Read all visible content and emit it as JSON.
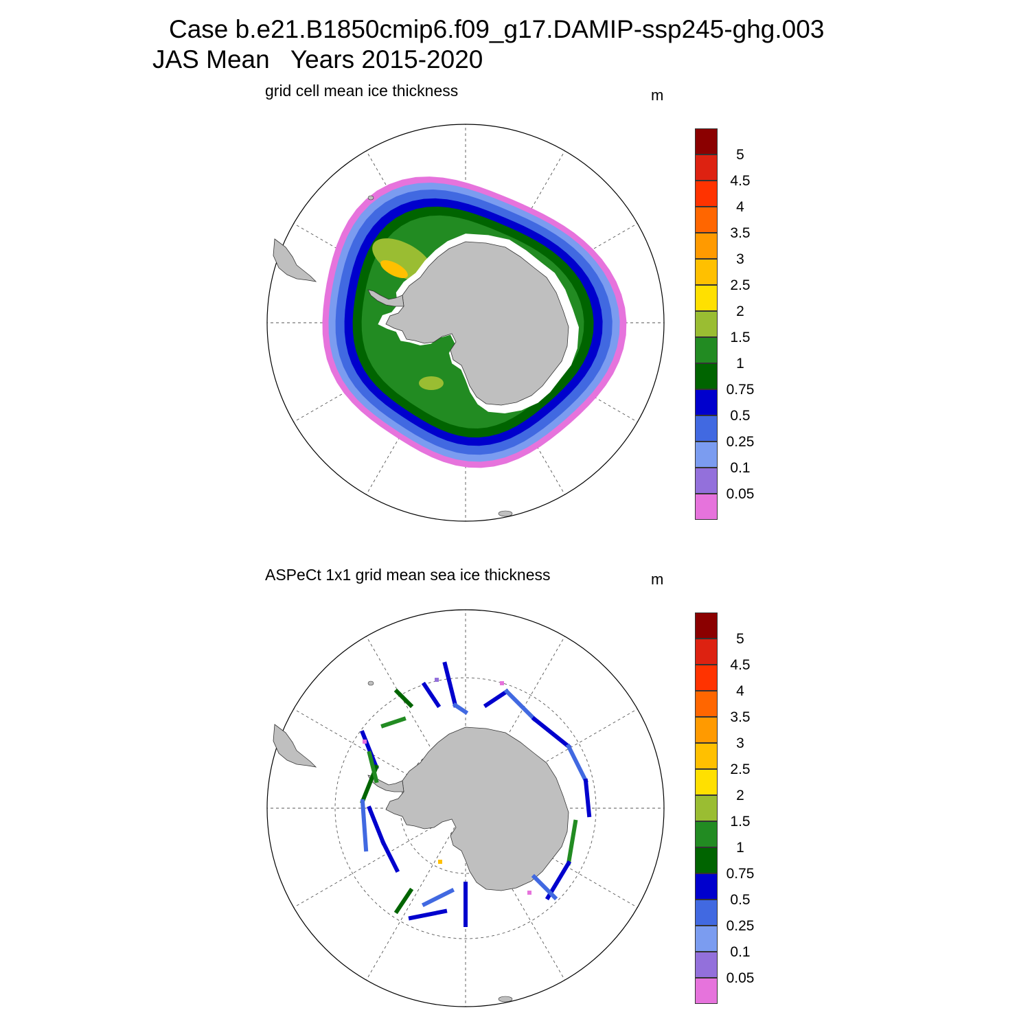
{
  "title": {
    "line1": "Case b.e21.B1850cmip6.f09_g17.DAMIP-ssp245-ghg.003",
    "line2": "JAS Mean   Years 2015-2020"
  },
  "colorbar": {
    "boundaries": [
      "0.05",
      "0.1",
      "0.25",
      "0.5",
      "0.75",
      "1",
      "1.5",
      "2",
      "2.5",
      "3",
      "3.5",
      "4",
      "4.5",
      "5"
    ],
    "colors": [
      "#e673dc",
      "#9370db",
      "#7b9cf0",
      "#4169e1",
      "#0000cd",
      "#006400",
      "#228b22",
      "#9abd32",
      "#ffe000",
      "#ffc000",
      "#ff9a00",
      "#ff6600",
      "#ff3300",
      "#dd2211",
      "#8b0000"
    ]
  },
  "map_style": {
    "land_color": "#bfbfbf",
    "grid_color": "#555555"
  },
  "panels": [
    {
      "id": "model",
      "subtitle": "grid cell mean ice thickness",
      "units": "m",
      "field": "grid-cell mean sea ice thickness (model, continuous ring)"
    },
    {
      "id": "obs",
      "subtitle": "ASPeCt 1x1 grid mean sea ice thickness",
      "units": "m",
      "field": "ship-track observations (sparse)"
    }
  ]
}
